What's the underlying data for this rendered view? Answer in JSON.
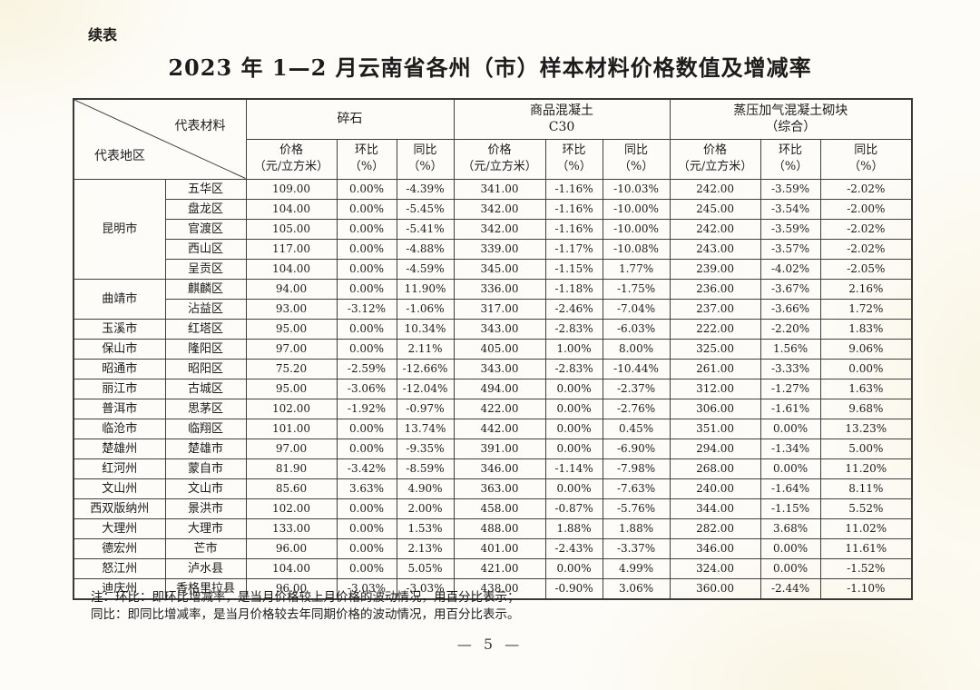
{
  "page": {
    "continued_label": "续表",
    "title": "2023 年 1—2 月云南省各州（市）样本材料价格数值及增减率",
    "notes": [
      "注：环比：即环比增减率，是当月价格较上月价格的波动情况，用百分比表示；",
      "同比：即同比增减率，是当月价格较去年同期价格的波动情况，用百分比表示。"
    ],
    "page_number": "— 5 —"
  },
  "table": {
    "corner": {
      "material_label": "代表材料",
      "region_label": "代表地区"
    },
    "materials": [
      {
        "lines": [
          "碎石"
        ]
      },
      {
        "lines": [
          "商品混凝土",
          "C30"
        ]
      },
      {
        "lines": [
          "蒸压加气混凝土砌块",
          "（综合）"
        ]
      }
    ],
    "metric_headers": [
      {
        "lines": [
          "价格",
          "（元/立方米）"
        ]
      },
      {
        "lines": [
          "环比",
          "（%）"
        ]
      },
      {
        "lines": [
          "同比",
          "（%）"
        ]
      }
    ],
    "groups": [
      {
        "region": "昆明市",
        "rows": [
          {
            "district": "五华区",
            "values": [
              "109.00",
              "0.00%",
              "-4.39%",
              "341.00",
              "-1.16%",
              "-10.03%",
              "242.00",
              "-3.59%",
              "-2.02%"
            ]
          },
          {
            "district": "盘龙区",
            "values": [
              "104.00",
              "0.00%",
              "-5.45%",
              "342.00",
              "-1.16%",
              "-10.00%",
              "245.00",
              "-3.54%",
              "-2.00%"
            ]
          },
          {
            "district": "官渡区",
            "values": [
              "105.00",
              "0.00%",
              "-5.41%",
              "342.00",
              "-1.16%",
              "-10.00%",
              "242.00",
              "-3.59%",
              "-2.02%"
            ]
          },
          {
            "district": "西山区",
            "values": [
              "117.00",
              "0.00%",
              "-4.88%",
              "339.00",
              "-1.17%",
              "-10.08%",
              "243.00",
              "-3.57%",
              "-2.02%"
            ]
          },
          {
            "district": "呈贡区",
            "values": [
              "104.00",
              "0.00%",
              "-4.59%",
              "345.00",
              "-1.15%",
              "1.77%",
              "239.00",
              "-4.02%",
              "-2.05%"
            ]
          }
        ]
      },
      {
        "region": "曲靖市",
        "rows": [
          {
            "district": "麒麟区",
            "values": [
              "94.00",
              "0.00%",
              "11.90%",
              "336.00",
              "-1.18%",
              "-1.75%",
              "236.00",
              "-3.67%",
              "2.16%"
            ]
          },
          {
            "district": "沾益区",
            "values": [
              "93.00",
              "-3.12%",
              "-1.06%",
              "317.00",
              "-2.46%",
              "-7.04%",
              "237.00",
              "-3.66%",
              "1.72%"
            ]
          }
        ]
      },
      {
        "region": "玉溪市",
        "rows": [
          {
            "district": "红塔区",
            "values": [
              "95.00",
              "0.00%",
              "10.34%",
              "343.00",
              "-2.83%",
              "-6.03%",
              "222.00",
              "-2.20%",
              "1.83%"
            ]
          }
        ]
      },
      {
        "region": "保山市",
        "rows": [
          {
            "district": "隆阳区",
            "values": [
              "97.00",
              "0.00%",
              "2.11%",
              "405.00",
              "1.00%",
              "8.00%",
              "325.00",
              "1.56%",
              "9.06%"
            ]
          }
        ]
      },
      {
        "region": "昭通市",
        "rows": [
          {
            "district": "昭阳区",
            "values": [
              "75.20",
              "-2.59%",
              "-12.66%",
              "343.00",
              "-2.83%",
              "-10.44%",
              "261.00",
              "-3.33%",
              "0.00%"
            ]
          }
        ]
      },
      {
        "region": "丽江市",
        "rows": [
          {
            "district": "古城区",
            "values": [
              "95.00",
              "-3.06%",
              "-12.04%",
              "494.00",
              "0.00%",
              "-2.37%",
              "312.00",
              "-1.27%",
              "1.63%"
            ]
          }
        ]
      },
      {
        "region": "普洱市",
        "rows": [
          {
            "district": "思茅区",
            "values": [
              "102.00",
              "-1.92%",
              "-0.97%",
              "422.00",
              "0.00%",
              "-2.76%",
              "306.00",
              "-1.61%",
              "9.68%"
            ]
          }
        ]
      },
      {
        "region": "临沧市",
        "rows": [
          {
            "district": "临翔区",
            "values": [
              "101.00",
              "0.00%",
              "13.74%",
              "442.00",
              "0.00%",
              "0.45%",
              "351.00",
              "0.00%",
              "13.23%"
            ]
          }
        ]
      },
      {
        "region": "楚雄州",
        "rows": [
          {
            "district": "楚雄市",
            "values": [
              "97.00",
              "0.00%",
              "-9.35%",
              "391.00",
              "0.00%",
              "-6.90%",
              "294.00",
              "-1.34%",
              "5.00%"
            ]
          }
        ]
      },
      {
        "region": "红河州",
        "rows": [
          {
            "district": "蒙自市",
            "values": [
              "81.90",
              "-3.42%",
              "-8.59%",
              "346.00",
              "-1.14%",
              "-7.98%",
              "268.00",
              "0.00%",
              "11.20%"
            ]
          }
        ]
      },
      {
        "region": "文山州",
        "rows": [
          {
            "district": "文山市",
            "values": [
              "85.60",
              "3.63%",
              "4.90%",
              "363.00",
              "0.00%",
              "-7.63%",
              "240.00",
              "-1.64%",
              "8.11%"
            ]
          }
        ]
      },
      {
        "region": "西双版纳州",
        "rows": [
          {
            "district": "景洪市",
            "values": [
              "102.00",
              "0.00%",
              "2.00%",
              "458.00",
              "-0.87%",
              "-5.76%",
              "344.00",
              "-1.15%",
              "5.52%"
            ]
          }
        ]
      },
      {
        "region": "大理州",
        "rows": [
          {
            "district": "大理市",
            "values": [
              "133.00",
              "0.00%",
              "1.53%",
              "488.00",
              "1.88%",
              "1.88%",
              "282.00",
              "3.68%",
              "11.02%"
            ]
          }
        ]
      },
      {
        "region": "德宏州",
        "rows": [
          {
            "district": "芒市",
            "values": [
              "96.00",
              "0.00%",
              "2.13%",
              "401.00",
              "-2.43%",
              "-3.37%",
              "346.00",
              "0.00%",
              "11.61%"
            ]
          }
        ]
      },
      {
        "region": "怒江州",
        "rows": [
          {
            "district": "泸水县",
            "values": [
              "104.00",
              "0.00%",
              "5.05%",
              "421.00",
              "0.00%",
              "4.99%",
              "324.00",
              "0.00%",
              "-1.52%"
            ]
          }
        ]
      },
      {
        "region": "迪庆州",
        "rows": [
          {
            "district": "香格里拉县",
            "values": [
              "96.00",
              "-3.03%",
              "-3.03%",
              "438.00",
              "-0.90%",
              "3.06%",
              "360.00",
              "-2.44%",
              "-1.10%"
            ]
          }
        ]
      }
    ]
  }
}
